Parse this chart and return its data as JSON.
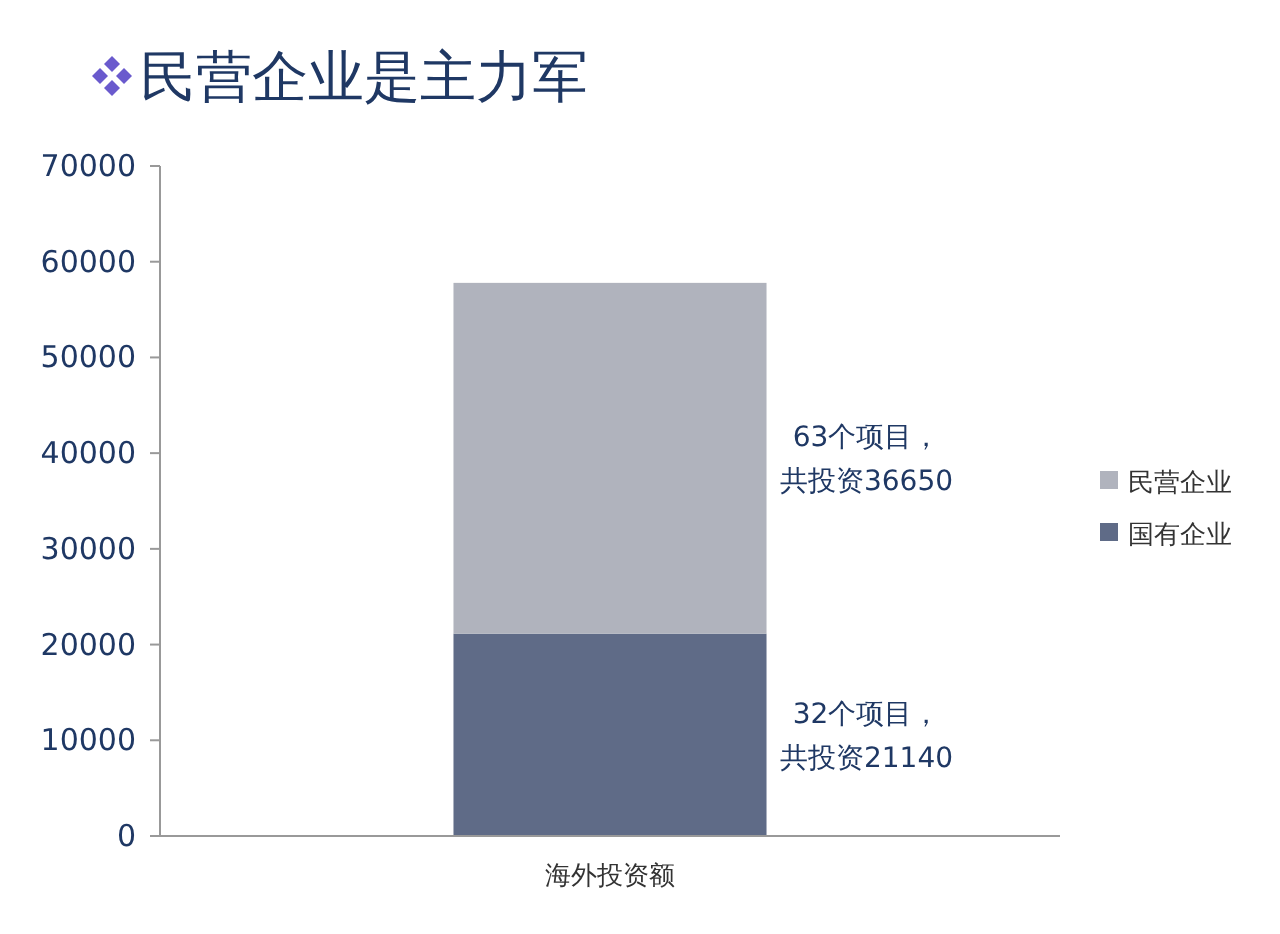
{
  "chart_data": {
    "type": "bar",
    "title": "民营企业是主力军",
    "categories": [
      "海外投资额"
    ],
    "stacked": true,
    "ylim": [
      0,
      70000
    ],
    "yticks": [
      0,
      10000,
      20000,
      30000,
      40000,
      50000,
      60000,
      70000
    ],
    "grid": false,
    "legend": "right",
    "series": [
      {
        "name": "国有企业",
        "color": "#5f6b87",
        "values": [
          21140
        ]
      },
      {
        "name": "民营企业",
        "color": "#b0b3bd",
        "values": [
          36650
        ]
      }
    ],
    "annotations": [
      "63个项目，共投资36650",
      "32个项目，共投资21140"
    ]
  }
}
